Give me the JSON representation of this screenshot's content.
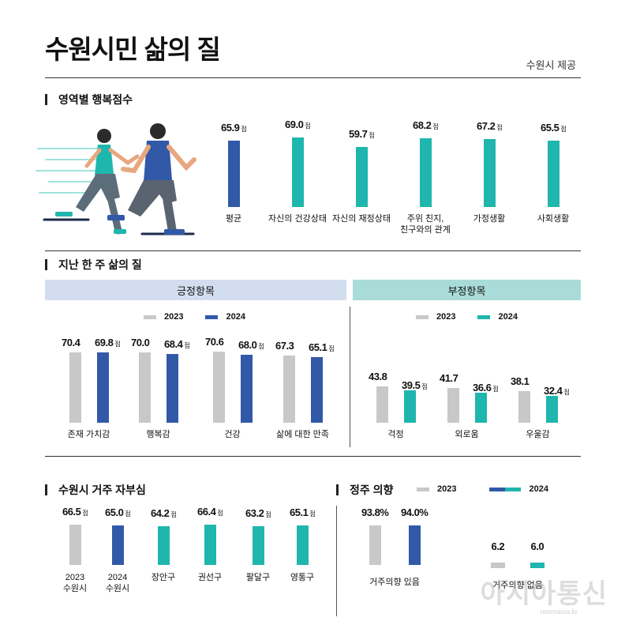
{
  "title": "수원시민 삶의 질",
  "source": "수원시 제공",
  "colors": {
    "blue": "#3159a8",
    "teal": "#1fb6ad",
    "gray": "#c8c8c8",
    "positive_band": "#d3ddf0",
    "negative_band": "#a9dcd8"
  },
  "unit": "점",
  "sections": {
    "domain": "영역별 행복점수",
    "week": "지난 한 주 삶의 질",
    "residence": "수원시 거주 자부심",
    "settle": "정주 의향"
  },
  "bands": {
    "positive": "긍정항목",
    "negative": "부정항목"
  },
  "legend": {
    "y2023": "2023",
    "y2024": "2024"
  },
  "watermark": "아시아통신",
  "watermark_sub": "newsasia.kr",
  "chart_data": [
    {
      "id": "domain",
      "type": "bar",
      "title": "영역별 행복점수",
      "categories": [
        "평균",
        "자신의 건강상태",
        "자신의 재정상태",
        "주위 친지,\n친구와의 관계",
        "가정생활",
        "사회생활"
      ],
      "values": [
        65.9,
        69.0,
        59.7,
        68.2,
        67.2,
        65.5
      ],
      "value_labels": [
        "65.9",
        "69.0",
        "59.7",
        "68.2",
        "67.2",
        "65.5"
      ],
      "colors": [
        "blue",
        "teal",
        "teal",
        "teal",
        "teal",
        "teal"
      ]
    },
    {
      "id": "week_positive",
      "type": "bar",
      "title": "긍정항목",
      "categories": [
        "존재 가치감",
        "행복감",
        "건강",
        "삶에 대한 만족"
      ],
      "series": [
        {
          "name": "2023",
          "values": [
            70.4,
            70.0,
            70.6,
            67.3
          ],
          "labels": [
            "70.4",
            "70.0",
            "70.6",
            "67.3"
          ]
        },
        {
          "name": "2024",
          "values": [
            69.8,
            68.4,
            68.0,
            65.1
          ],
          "labels": [
            "69.8",
            "68.4",
            "68.0",
            "65.1"
          ]
        }
      ]
    },
    {
      "id": "week_negative",
      "type": "bar",
      "title": "부정항목",
      "categories": [
        "걱정",
        "외로움",
        "우울감"
      ],
      "series": [
        {
          "name": "2023",
          "values": [
            43.8,
            41.7,
            38.1
          ],
          "labels": [
            "43.8",
            "41.7",
            "38.1"
          ]
        },
        {
          "name": "2024",
          "values": [
            39.5,
            36.6,
            32.4
          ],
          "labels": [
            "39.5",
            "36.6",
            "32.4"
          ]
        }
      ]
    },
    {
      "id": "residence",
      "type": "bar",
      "title": "수원시 거주 자부심",
      "categories": [
        "2023\n수원시",
        "2024\n수원시",
        "장안구",
        "권선구",
        "팔달구",
        "영통구"
      ],
      "values": [
        66.5,
        65.0,
        64.2,
        66.4,
        63.2,
        65.1
      ],
      "value_labels": [
        "66.5",
        "65.0",
        "64.2",
        "66.4",
        "63.2",
        "65.1"
      ],
      "colors": [
        "gray",
        "blue",
        "teal",
        "teal",
        "teal",
        "teal"
      ]
    },
    {
      "id": "settle",
      "type": "bar",
      "title": "정주 의향",
      "categories": [
        "거주의향 있음",
        "거주의향 없음"
      ],
      "series": [
        {
          "name": "2023",
          "values": [
            93.8,
            6.2
          ],
          "labels": [
            "93.8%",
            "6.2"
          ]
        },
        {
          "name": "2024",
          "values": [
            94.0,
            6.0
          ],
          "labels": [
            "94.0%",
            "6.0"
          ]
        }
      ]
    }
  ]
}
